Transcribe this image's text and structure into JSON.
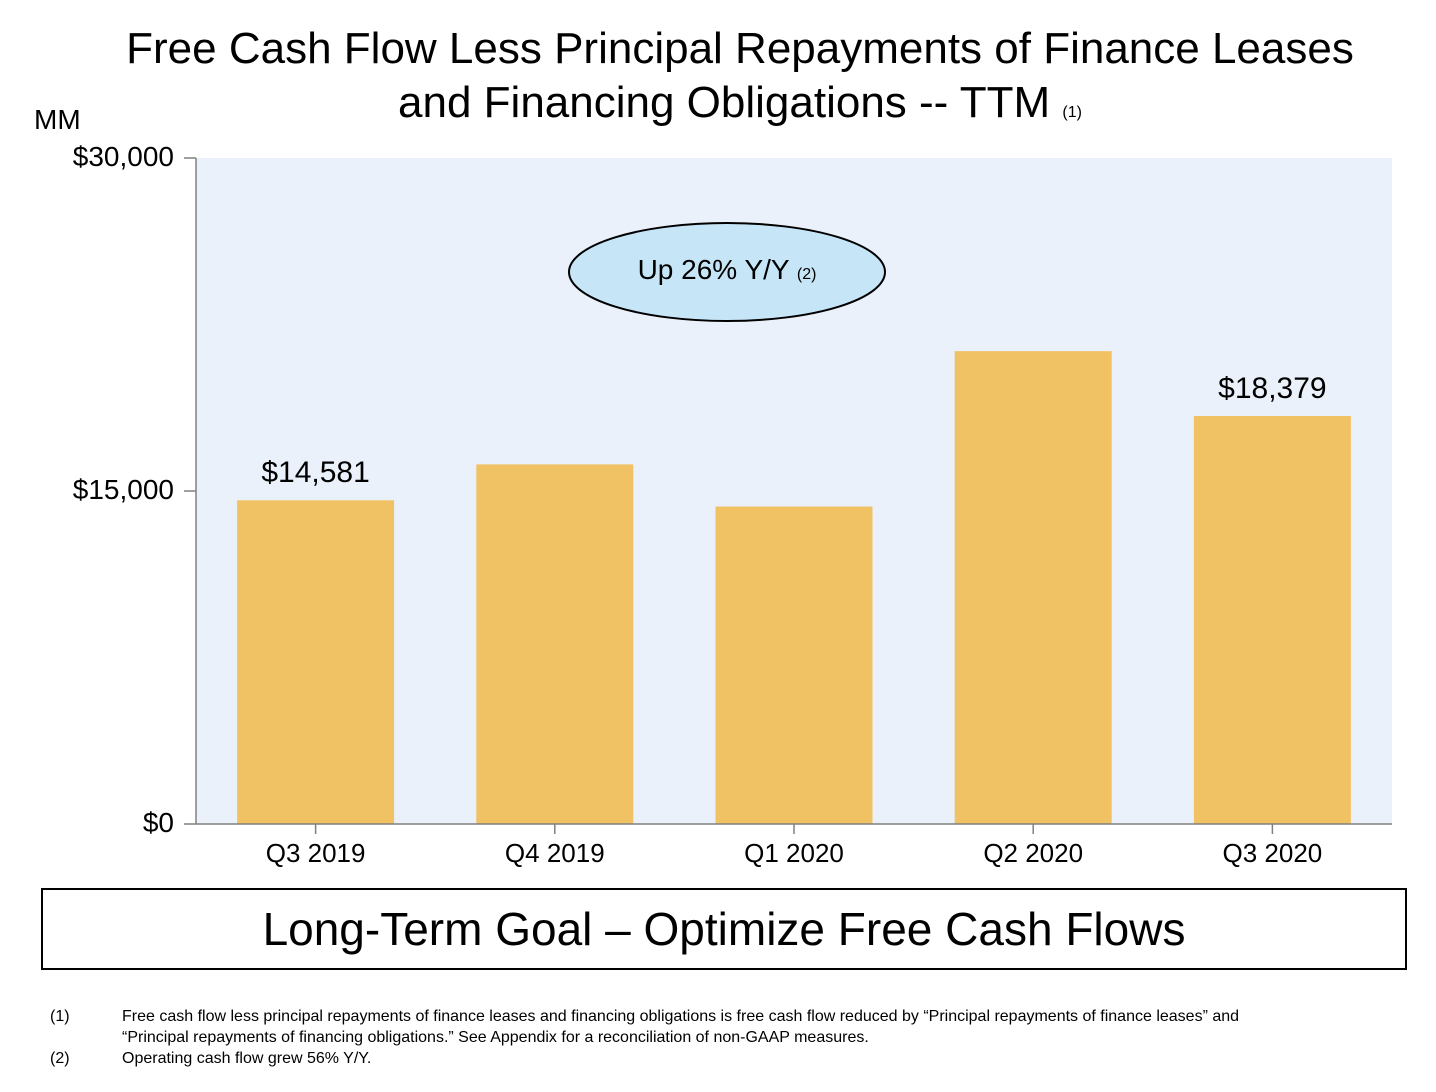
{
  "title": {
    "line1": "Free Cash Flow Less Principal Repayments of Finance Leases",
    "line2": "and Financing Obligations -- TTM",
    "footnote_ref": "(1)"
  },
  "unit_label": "MM",
  "callout": {
    "text": "Up 26% Y/Y",
    "footnote_ref": "(2)"
  },
  "goal_banner": "Long-Term Goal – Optimize Free Cash Flows",
  "footnotes": [
    {
      "num": "(1)",
      "text": "Free cash flow less principal repayments of finance leases and financing obligations is free cash flow reduced by “Principal repayments of finance leases” and “Principal repayments of financing obligations.” See Appendix for a reconciliation of non-GAAP measures."
    },
    {
      "num": "(2)",
      "text": "Operating cash flow grew 56% Y/Y."
    }
  ],
  "colors": {
    "bar": "#F1C264",
    "plot_bg": "#EAF1FB",
    "callout_fill": "#C6E6F7",
    "axis": "#808080"
  },
  "chart_data": {
    "type": "bar",
    "title": "Free Cash Flow Less Principal Repayments of Finance Leases and Financing Obligations -- TTM",
    "ylabel": "MM",
    "xlabel": "",
    "categories": [
      "Q3 2019",
      "Q4 2019",
      "Q1 2020",
      "Q2 2020",
      "Q3 2020"
    ],
    "values": [
      14581,
      16200,
      14300,
      21300,
      18379
    ],
    "data_labels": [
      "$14,581",
      "",
      "",
      "",
      "$18,379"
    ],
    "ylim": [
      0,
      30000
    ],
    "yticks": [
      0,
      15000,
      30000
    ],
    "ytick_labels": [
      "$0",
      "$15,000",
      "$30,000"
    ]
  }
}
